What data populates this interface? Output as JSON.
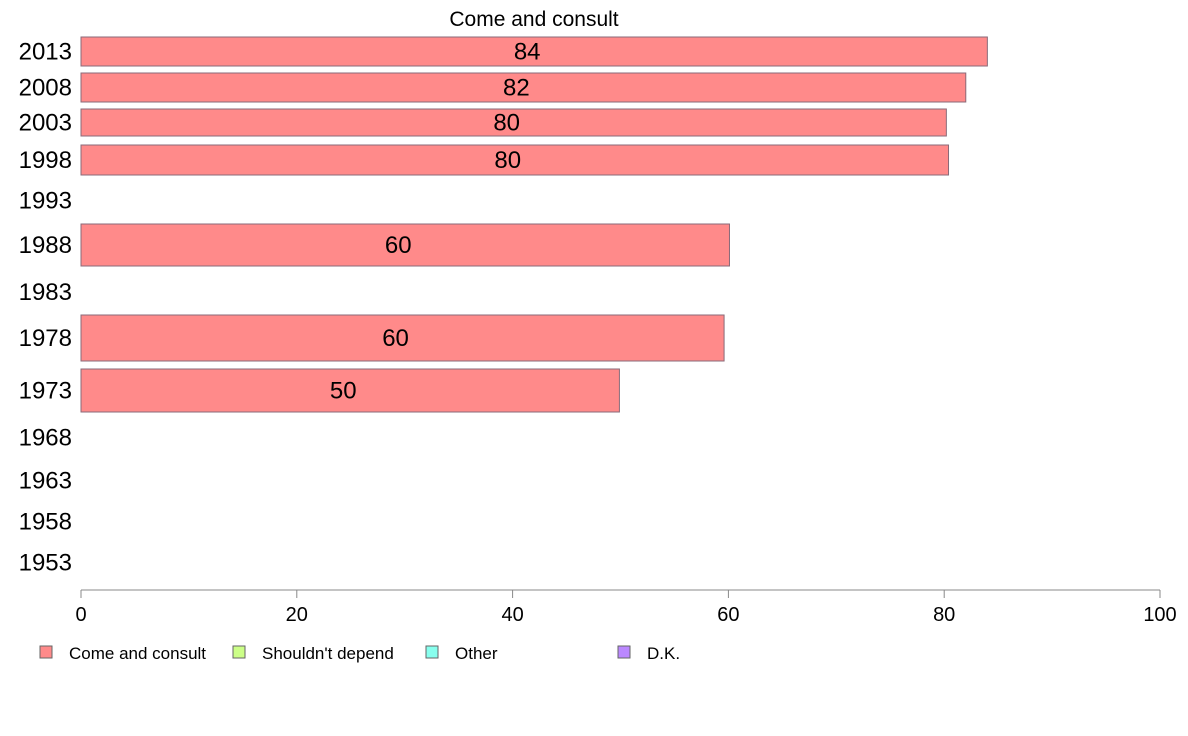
{
  "chart_data": {
    "type": "bar",
    "orientation": "horizontal",
    "title": "Come and consult",
    "xlabel": "",
    "ylabel": "",
    "xlim": [
      0,
      100
    ],
    "x_ticks": [
      0,
      20,
      40,
      60,
      80,
      100
    ],
    "grid": false,
    "legend_position": "bottom",
    "categories": [
      "2013",
      "2008",
      "2003",
      "1998",
      "1993",
      "1988",
      "1983",
      "1978",
      "1973",
      "1968",
      "1963",
      "1958",
      "1953"
    ],
    "series": [
      {
        "name": "Come and consult",
        "color": "#ff8a8a",
        "values": [
          84,
          82,
          80.2,
          80.4,
          null,
          60.1,
          null,
          59.6,
          49.9,
          null,
          null,
          null,
          null
        ],
        "data_labels": [
          "84",
          "82",
          "80",
          "80",
          null,
          "60",
          null,
          "60",
          "50",
          null,
          null,
          null,
          null
        ]
      },
      {
        "name": "Shouldn't depend",
        "color": "#ccff88",
        "values": [
          null,
          null,
          null,
          null,
          null,
          null,
          null,
          null,
          null,
          null,
          null,
          null,
          null
        ]
      },
      {
        "name": "Other",
        "color": "#88ffee",
        "values": [
          null,
          null,
          null,
          null,
          null,
          null,
          null,
          null,
          null,
          null,
          null,
          null,
          null
        ]
      },
      {
        "name": "D.K.",
        "color": "#bb88ff",
        "values": [
          null,
          null,
          null,
          null,
          null,
          null,
          null,
          null,
          null,
          null,
          null,
          null,
          null
        ]
      }
    ]
  }
}
